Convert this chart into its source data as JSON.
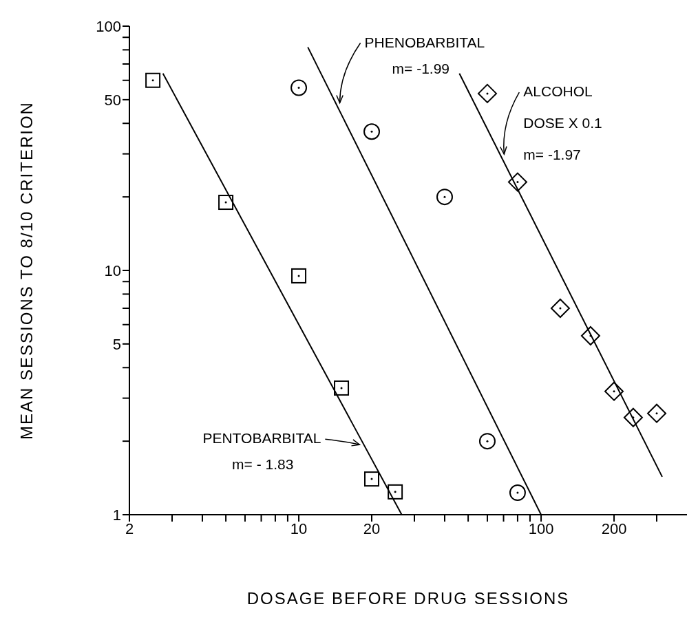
{
  "chart_data": {
    "type": "scatter",
    "xlabel": "DOSAGE BEFORE DRUG SESSIONS",
    "ylabel": "MEAN SESSIONS TO 8/10 CRITERION",
    "log": "xy",
    "xlim": [
      2,
      400
    ],
    "ylim": [
      1,
      100
    ],
    "xticks": [
      2,
      {
        "value": 3,
        "label": null
      },
      {
        "value": 4,
        "label": null
      },
      {
        "value": 5,
        "label": null
      },
      {
        "value": 6,
        "label": null
      },
      {
        "value": 7,
        "label": null
      },
      {
        "value": 8,
        "label": null
      },
      {
        "value": 9,
        "label": null
      },
      10,
      20,
      {
        "value": 30,
        "label": null
      },
      {
        "value": 40,
        "label": null
      },
      {
        "value": 50,
        "label": null
      },
      {
        "value": 60,
        "label": null
      },
      {
        "value": 70,
        "label": null
      },
      {
        "value": 80,
        "label": null
      },
      {
        "value": 90,
        "label": null
      },
      100,
      200,
      {
        "value": 300,
        "label": null
      }
    ],
    "yticks": [
      1,
      {
        "value": 2,
        "label": null
      },
      {
        "value": 3,
        "label": null
      },
      {
        "value": 4,
        "label": null
      },
      5,
      {
        "value": 6,
        "label": null
      },
      {
        "value": 7,
        "label": null
      },
      {
        "value": 8,
        "label": null
      },
      {
        "value": 9,
        "label": null
      },
      10,
      {
        "value": 20,
        "label": null
      },
      {
        "value": 30,
        "label": null
      },
      {
        "value": 40,
        "label": null
      },
      50,
      {
        "value": 60,
        "label": null
      },
      {
        "value": 70,
        "label": null
      },
      {
        "value": 80,
        "label": null
      },
      {
        "value": 90,
        "label": null
      },
      100
    ],
    "series": [
      {
        "marker": "square",
        "color": "#000000",
        "x": [
          2.5,
          5,
          10,
          15,
          20,
          25
        ],
        "values": [
          60,
          19,
          9.5,
          3.3,
          1.4,
          1.24
        ]
      },
      {
        "marker": "circle",
        "color": "#000000",
        "x": [
          10,
          20,
          40,
          60,
          80
        ],
        "values": [
          56,
          37,
          20,
          2,
          1.23
        ]
      },
      {
        "marker": "diamond",
        "color": "#000000",
        "x": [
          60,
          80,
          120,
          160,
          200,
          240,
          300
        ],
        "values": [
          53,
          23,
          7,
          5.4,
          3.2,
          2.5,
          2.6
        ]
      },
      {
        "type": "line",
        "marker": "none",
        "color": "#000000",
        "x": [
          2.75,
          26.6
        ],
        "values": [
          64,
          1
        ]
      },
      {
        "type": "line",
        "marker": "none",
        "color": "#000000",
        "x": [
          10.9,
          100
        ],
        "values": [
          82,
          1
        ]
      },
      {
        "type": "line",
        "marker": "none",
        "color": "#000000",
        "x": [
          46,
          316
        ],
        "values": [
          64,
          1.43
        ]
      }
    ],
    "annotations": [
      "PHENOBARBITAL\nm= -1.99",
      "ALCOHOL\nDOSE X 0.1\nm= -1.97",
      "PENTOBARBITAL\nm= - 1.83"
    ]
  }
}
